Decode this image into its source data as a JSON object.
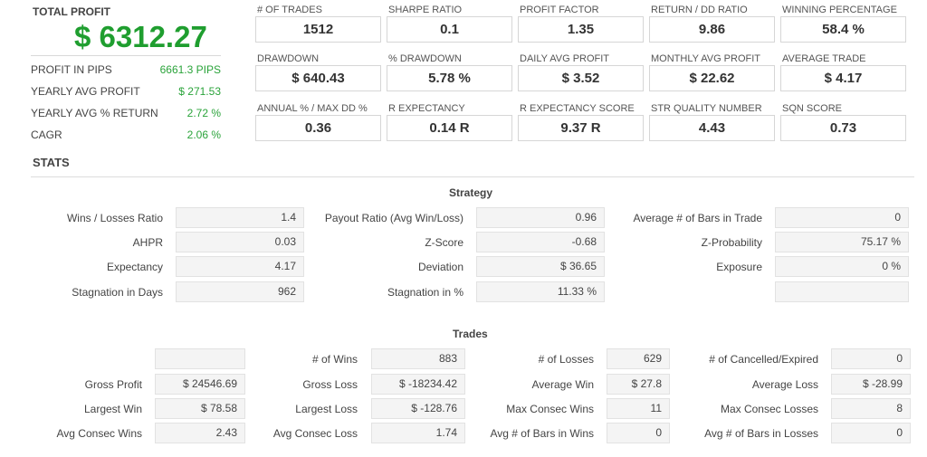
{
  "summary": {
    "total_profit_label": "TOTAL PROFIT",
    "total_profit_value": "$ 6312.27",
    "rows": [
      {
        "label": "PROFIT IN PIPS",
        "value": "6661.3 PIPS"
      },
      {
        "label": "YEARLY AVG PROFIT",
        "value": "$ 271.53"
      },
      {
        "label": "YEARLY AVG % RETURN",
        "value": "2.72 %"
      },
      {
        "label": "CAGR",
        "value": "2.06 %"
      }
    ]
  },
  "metrics": [
    {
      "label": "# OF TRADES",
      "value": "1512"
    },
    {
      "label": "SHARPE RATIO",
      "value": "0.1"
    },
    {
      "label": "PROFIT FACTOR",
      "value": "1.35"
    },
    {
      "label": "RETURN / DD RATIO",
      "value": "9.86"
    },
    {
      "label": "WINNING PERCENTAGE",
      "value": "58.4 %"
    },
    {
      "label": "DRAWDOWN",
      "value": "$ 640.43"
    },
    {
      "label": "% DRAWDOWN",
      "value": "5.78 %"
    },
    {
      "label": "DAILY AVG PROFIT",
      "value": "$ 3.52"
    },
    {
      "label": "MONTHLY AVG PROFIT",
      "value": "$ 22.62"
    },
    {
      "label": "AVERAGE TRADE",
      "value": "$ 4.17"
    },
    {
      "label": "ANNUAL % / MAX DD %",
      "value": "0.36"
    },
    {
      "label": "R EXPECTANCY",
      "value": "0.14 R"
    },
    {
      "label": "R EXPECTANCY SCORE",
      "value": "9.37 R"
    },
    {
      "label": "STR QUALITY NUMBER",
      "value": "4.43"
    },
    {
      "label": "SQN SCORE",
      "value": "0.73"
    }
  ],
  "stats_title": "STATS",
  "strategy": {
    "title": "Strategy",
    "rows": [
      [
        {
          "label": "Wins / Losses Ratio",
          "value": "1.4"
        },
        {
          "label": "Payout Ratio (Avg Win/Loss)",
          "value": "0.96"
        },
        {
          "label": "Average # of Bars in Trade",
          "value": "0"
        }
      ],
      [
        {
          "label": "AHPR",
          "value": "0.03"
        },
        {
          "label": "Z-Score",
          "value": "-0.68"
        },
        {
          "label": "Z-Probability",
          "value": "75.17 %"
        }
      ],
      [
        {
          "label": "Expectancy",
          "value": "4.17"
        },
        {
          "label": "Deviation",
          "value": "$ 36.65"
        },
        {
          "label": "Exposure",
          "value": "0 %"
        }
      ],
      [
        {
          "label": "Stagnation in Days",
          "value": "962"
        },
        {
          "label": "Stagnation in %",
          "value": "11.33 %"
        },
        {
          "label": "",
          "value": ""
        }
      ]
    ]
  },
  "trades": {
    "title": "Trades",
    "rows": [
      [
        {
          "label": "",
          "value": ""
        },
        {
          "label": "# of Wins",
          "value": "883"
        },
        {
          "label": "# of Losses",
          "value": "629"
        },
        {
          "label": "# of Cancelled/Expired",
          "value": "0"
        }
      ],
      [
        {
          "label": "Gross Profit",
          "value": "$ 24546.69"
        },
        {
          "label": "Gross Loss",
          "value": "$ -18234.42"
        },
        {
          "label": "Average Win",
          "value": "$ 27.8"
        },
        {
          "label": "Average Loss",
          "value": "$ -28.99"
        }
      ],
      [
        {
          "label": "Largest Win",
          "value": "$ 78.58"
        },
        {
          "label": "Largest Loss",
          "value": "$ -128.76"
        },
        {
          "label": "Max Consec Wins",
          "value": "11"
        },
        {
          "label": "Max Consec Losses",
          "value": "8"
        }
      ],
      [
        {
          "label": "Avg Consec Wins",
          "value": "2.43"
        },
        {
          "label": "Avg Consec Loss",
          "value": "1.74"
        },
        {
          "label": "Avg # of Bars in Wins",
          "value": "0"
        },
        {
          "label": "Avg # of Bars in Losses",
          "value": "0"
        }
      ]
    ]
  }
}
